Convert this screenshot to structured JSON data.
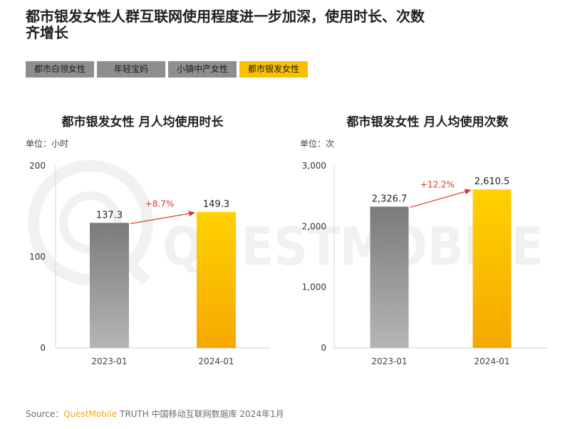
{
  "page": {
    "title": "都市银发女性人群互联网使用程度进一步加深，使用时长、次数齐增长",
    "tabs": [
      {
        "label": "都市白领女性",
        "active": false
      },
      {
        "label": "年轻宝妈",
        "active": false
      },
      {
        "label": "小镇中产女性",
        "active": false
      },
      {
        "label": "都市银发女性",
        "active": true
      }
    ],
    "watermark": "QUESTMOBILE",
    "source": {
      "prefix": "Source：",
      "brand": "QuestMobile",
      "text": "TRUTH 中国移动互联网数据库 2024年1月"
    }
  },
  "colors": {
    "tab_inactive": "#8e8e8e",
    "tab_active": "#f9c000",
    "bar_2023_top": "#7b7b7b",
    "bar_2023_bottom": "#b5b5b5",
    "bar_2024_top": "#ffd200",
    "bar_2024_bottom": "#f5a800",
    "growth_arrow": "#e0352b",
    "source_brand": "#f5a623",
    "watermark": "#f1f1f1"
  },
  "chart_data": [
    {
      "type": "bar",
      "title": "都市银发女性 月人均使用时长",
      "unit": "单位：小时",
      "categories": [
        "2023-01",
        "2024-01"
      ],
      "values": [
        137.3,
        149.3
      ],
      "value_labels": [
        "137.3",
        "149.3"
      ],
      "growth_label": "+8.7%",
      "ylim": [
        0,
        200
      ],
      "yticks": [
        0,
        100,
        200
      ],
      "ytick_labels": [
        "0",
        "100",
        "200"
      ],
      "grid": false
    },
    {
      "type": "bar",
      "title": "都市银发女性 月人均使用次数",
      "unit": "单位：次",
      "categories": [
        "2023-01",
        "2024-01"
      ],
      "values": [
        2326.7,
        2610.5
      ],
      "value_labels": [
        "2,326.7",
        "2,610.5"
      ],
      "growth_label": "+12.2%",
      "ylim": [
        0,
        3000
      ],
      "yticks": [
        0,
        1000,
        2000,
        3000
      ],
      "ytick_labels": [
        "0",
        "1,000",
        "2,000",
        "3,000"
      ],
      "grid": false
    }
  ]
}
